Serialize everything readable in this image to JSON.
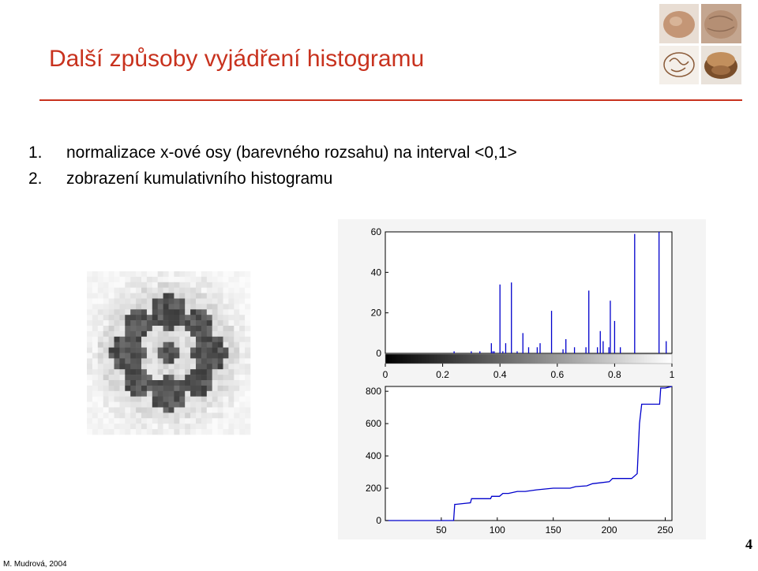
{
  "slide": {
    "title": "Další způsoby vyjádření histogramu",
    "items": [
      {
        "number": "1.",
        "text": "normalizace x-ové osy (barevného rozsahu) na interval <0,1>"
      },
      {
        "number": "2.",
        "text": "zobrazení kumulativního histogramu"
      }
    ],
    "page_number": "4",
    "footer": "M. Mudrová, 2004"
  },
  "colors": {
    "title": "#c8321e",
    "rule": "#c8321e",
    "plot_line": "#0000cc"
  },
  "images": {
    "logo": "walnut-photos-icon",
    "thumbnail": "pixelated-walnut-image"
  },
  "chart_data": [
    {
      "type": "bar",
      "title": "",
      "xlabel": "",
      "ylabel": "",
      "xlim": [
        0,
        1
      ],
      "ylim": [
        0,
        60
      ],
      "x_ticks": [
        "0",
        "0.2",
        "0.4",
        "0.6",
        "0.8",
        "1"
      ],
      "y_ticks": [
        "0",
        "20",
        "40",
        "60"
      ],
      "colorbar": "grayscale 0-1",
      "grid": false,
      "x": [
        0.24,
        0.3,
        0.33,
        0.37,
        0.375,
        0.38,
        0.4,
        0.41,
        0.42,
        0.44,
        0.46,
        0.48,
        0.5,
        0.53,
        0.54,
        0.58,
        0.62,
        0.63,
        0.66,
        0.7,
        0.71,
        0.74,
        0.75,
        0.76,
        0.78,
        0.785,
        0.8,
        0.82,
        0.87,
        0.955,
        0.98
      ],
      "values": [
        1,
        1,
        1,
        5,
        1,
        1,
        34,
        1,
        5,
        35,
        1,
        10,
        3,
        3,
        5,
        21,
        2,
        7,
        3,
        3,
        31,
        3,
        11,
        6,
        3,
        26,
        16,
        3,
        59,
        60,
        6
      ]
    },
    {
      "type": "line",
      "title": "",
      "xlabel": "",
      "ylabel": "",
      "xlim": [
        0,
        256
      ],
      "ylim": [
        0,
        830
      ],
      "x_ticks": [
        "50",
        "100",
        "150",
        "200",
        "250"
      ],
      "y_ticks": [
        "0",
        "200",
        "400",
        "600",
        "800"
      ],
      "grid": false,
      "x": [
        0,
        61,
        62,
        63,
        76,
        77,
        94,
        95,
        102,
        105,
        110,
        118,
        125,
        135,
        150,
        165,
        170,
        180,
        185,
        200,
        203,
        220,
        225,
        227,
        229,
        245,
        246,
        250,
        256
      ],
      "y": [
        0,
        0,
        100,
        100,
        110,
        135,
        135,
        150,
        150,
        168,
        168,
        180,
        180,
        190,
        200,
        200,
        210,
        215,
        228,
        240,
        260,
        260,
        290,
        600,
        720,
        720,
        820,
        820,
        830
      ]
    }
  ]
}
